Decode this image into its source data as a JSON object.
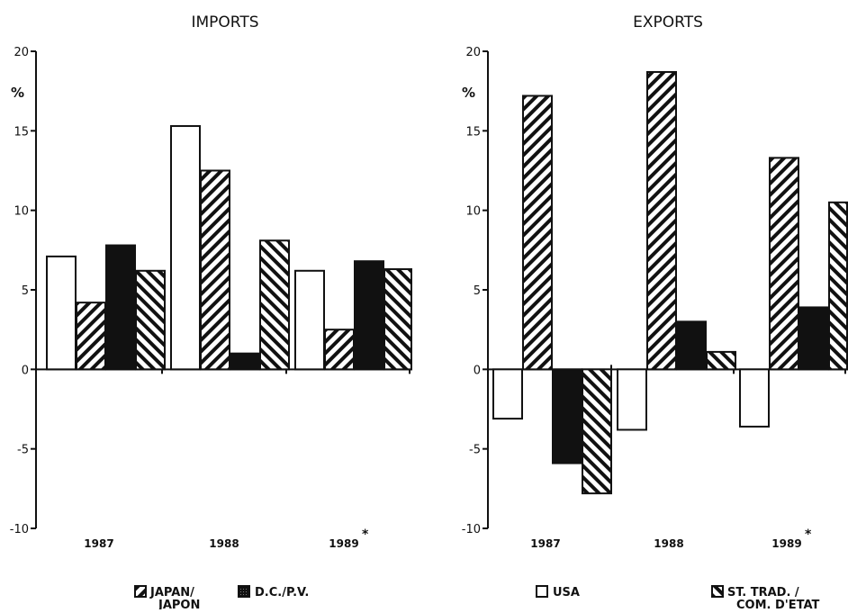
{
  "chart_data": [
    {
      "type": "bar",
      "title": "IMPORTS",
      "ylabel": "%",
      "ylim": [
        -10,
        20
      ],
      "yticks": [
        "-10",
        "-5",
        "0",
        "5",
        "10",
        "15",
        "20"
      ],
      "categories": [
        "1987",
        "1988",
        "1989"
      ],
      "category_marks": [
        "",
        "",
        "*"
      ],
      "series": [
        {
          "name": "USA",
          "pattern": "white",
          "values": [
            7.1,
            15.3,
            6.2
          ]
        },
        {
          "name": "JAPAN/ JAPON",
          "pattern": "hatch-right",
          "values": [
            4.2,
            12.5,
            2.5
          ]
        },
        {
          "name": "D.C./P.V.",
          "pattern": "solid",
          "values": [
            7.8,
            1.0,
            6.8
          ]
        },
        {
          "name": "ST. TRAD. / COM. D'ETAT",
          "pattern": "hatch-left",
          "values": [
            6.2,
            8.1,
            6.3
          ]
        }
      ],
      "grid": false,
      "legend": "none"
    },
    {
      "type": "bar",
      "title": "EXPORTS",
      "ylabel": "%",
      "ylim": [
        -10,
        20
      ],
      "yticks": [
        "-10",
        "-5",
        "0",
        "5",
        "10",
        "15",
        "20"
      ],
      "categories": [
        "1987",
        "1988",
        "1989"
      ],
      "category_marks": [
        "",
        "",
        "*"
      ],
      "series": [
        {
          "name": "USA",
          "pattern": "white",
          "values": [
            -3.1,
            -3.8,
            -3.6
          ]
        },
        {
          "name": "JAPAN/ JAPON",
          "pattern": "hatch-right",
          "values": [
            17.2,
            18.7,
            13.3
          ]
        },
        {
          "name": "D.C./P.V.",
          "pattern": "solid",
          "values": [
            -5.9,
            3.0,
            3.9
          ]
        },
        {
          "name": "ST. TRAD. / COM. D'ETAT",
          "pattern": "hatch-left",
          "values": [
            -7.8,
            1.1,
            10.5
          ]
        }
      ],
      "grid": false,
      "legend": "bottom"
    }
  ],
  "legend": {
    "japan": [
      "JAPAN/",
      "JAPON"
    ],
    "dc": "D.C./P.V.",
    "usa": "USA",
    "st": [
      "ST. TRAD. /",
      "COM. D'ETAT"
    ]
  },
  "colors": {
    "ink": "#111111",
    "paper": "#ffffff"
  }
}
